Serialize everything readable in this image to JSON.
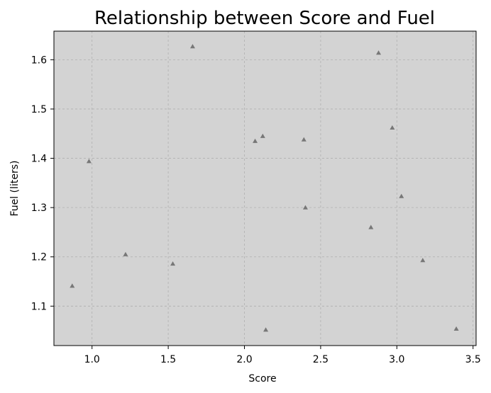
{
  "chart_data": {
    "type": "scatter",
    "title": "Relationship between Score and Fuel",
    "xlabel": "Score",
    "ylabel": "Fuel (liters)",
    "xlim": [
      0.75,
      3.52
    ],
    "ylim": [
      1.02,
      1.658
    ],
    "xticks": [
      "1.0",
      "1.5",
      "2.0",
      "2.5",
      "3.0",
      "3.5"
    ],
    "yticks": [
      "1.1",
      "1.2",
      "1.3",
      "1.4",
      "1.5",
      "1.6"
    ],
    "grid": true,
    "marker": "triangle",
    "background_color": "#d3d3d3",
    "marker_color": "#777777",
    "points": [
      {
        "x": 0.87,
        "y": 1.141
      },
      {
        "x": 0.98,
        "y": 1.394
      },
      {
        "x": 1.22,
        "y": 1.205
      },
      {
        "x": 1.53,
        "y": 1.186
      },
      {
        "x": 1.66,
        "y": 1.627
      },
      {
        "x": 2.07,
        "y": 1.435
      },
      {
        "x": 2.12,
        "y": 1.445
      },
      {
        "x": 2.14,
        "y": 1.052
      },
      {
        "x": 2.39,
        "y": 1.438
      },
      {
        "x": 2.4,
        "y": 1.3
      },
      {
        "x": 2.83,
        "y": 1.26
      },
      {
        "x": 2.88,
        "y": 1.614
      },
      {
        "x": 2.97,
        "y": 1.462
      },
      {
        "x": 3.03,
        "y": 1.323
      },
      {
        "x": 3.17,
        "y": 1.193
      },
      {
        "x": 3.39,
        "y": 1.054
      }
    ]
  }
}
